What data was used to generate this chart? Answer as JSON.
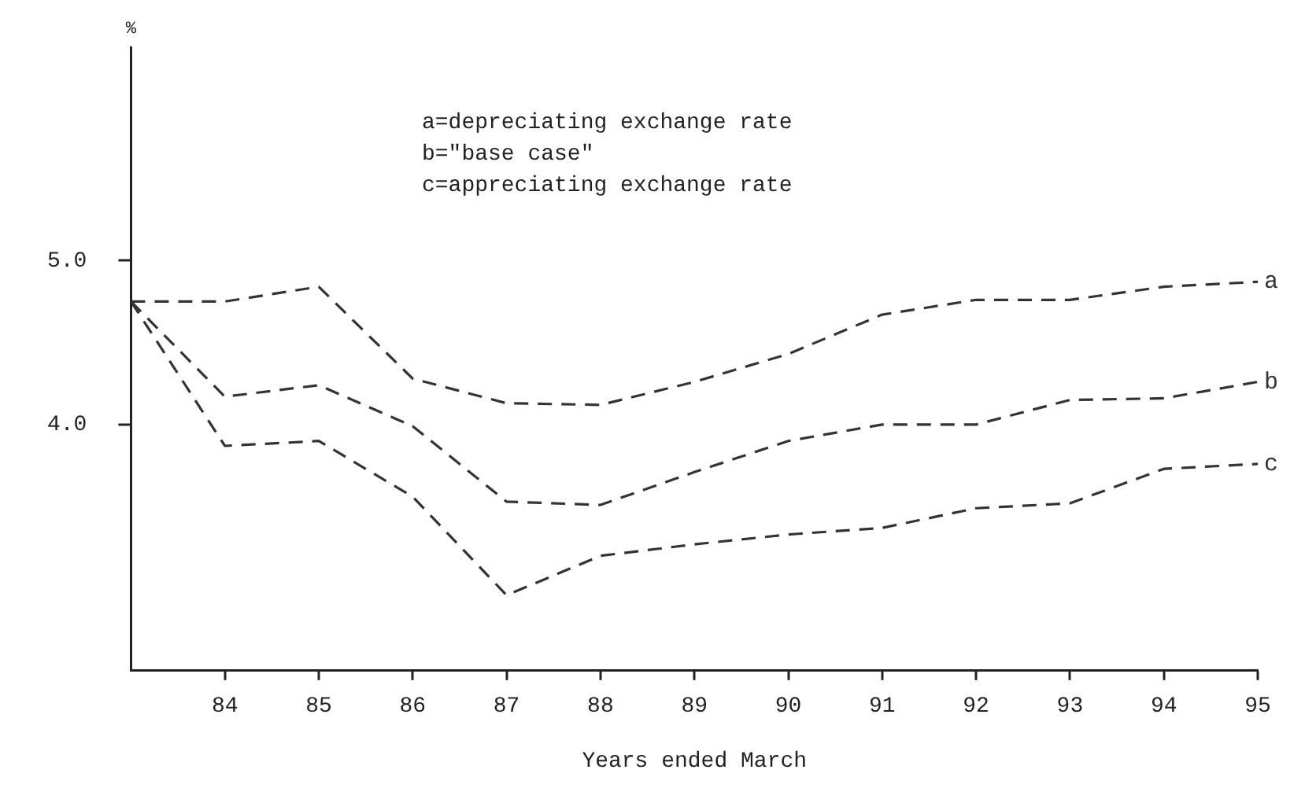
{
  "chart_data": {
    "type": "line",
    "xlabel": "Years ended March",
    "ylabel": "%",
    "annotations": [
      "a=depreciating exchange rate",
      "b=\"base case\"",
      "c=appreciating exchange rate"
    ],
    "x": [
      83,
      84,
      85,
      86,
      87,
      88,
      89,
      90,
      91,
      92,
      93,
      94,
      95
    ],
    "series": [
      {
        "name": "a",
        "color": "#333333",
        "values": [
          4.75,
          4.75,
          4.84,
          4.28,
          4.13,
          4.12,
          4.26,
          4.43,
          4.67,
          4.76,
          4.76,
          4.84,
          4.87
        ]
      },
      {
        "name": "b",
        "color": "#333333",
        "values": [
          4.75,
          4.17,
          4.24,
          3.99,
          3.53,
          3.51,
          3.71,
          3.9,
          4.0,
          4.0,
          4.15,
          4.16,
          4.26
        ]
      },
      {
        "name": "c",
        "color": "#333333",
        "values": [
          4.75,
          3.87,
          3.9,
          3.56,
          2.96,
          3.2,
          3.27,
          3.33,
          3.37,
          3.49,
          3.52,
          3.73,
          3.76
        ]
      }
    ],
    "xlim": [
      83,
      95
    ],
    "xticks": [
      84,
      85,
      86,
      87,
      88,
      89,
      90,
      91,
      92,
      93,
      94,
      95
    ],
    "ylim": [
      2.5,
      6.3
    ],
    "yticks": [
      {
        "value": 4,
        "label": "4.0"
      },
      {
        "value": 5,
        "label": "5.0"
      }
    ],
    "grid": false,
    "legend": false,
    "marker": "none",
    "line_style": "dashed"
  }
}
